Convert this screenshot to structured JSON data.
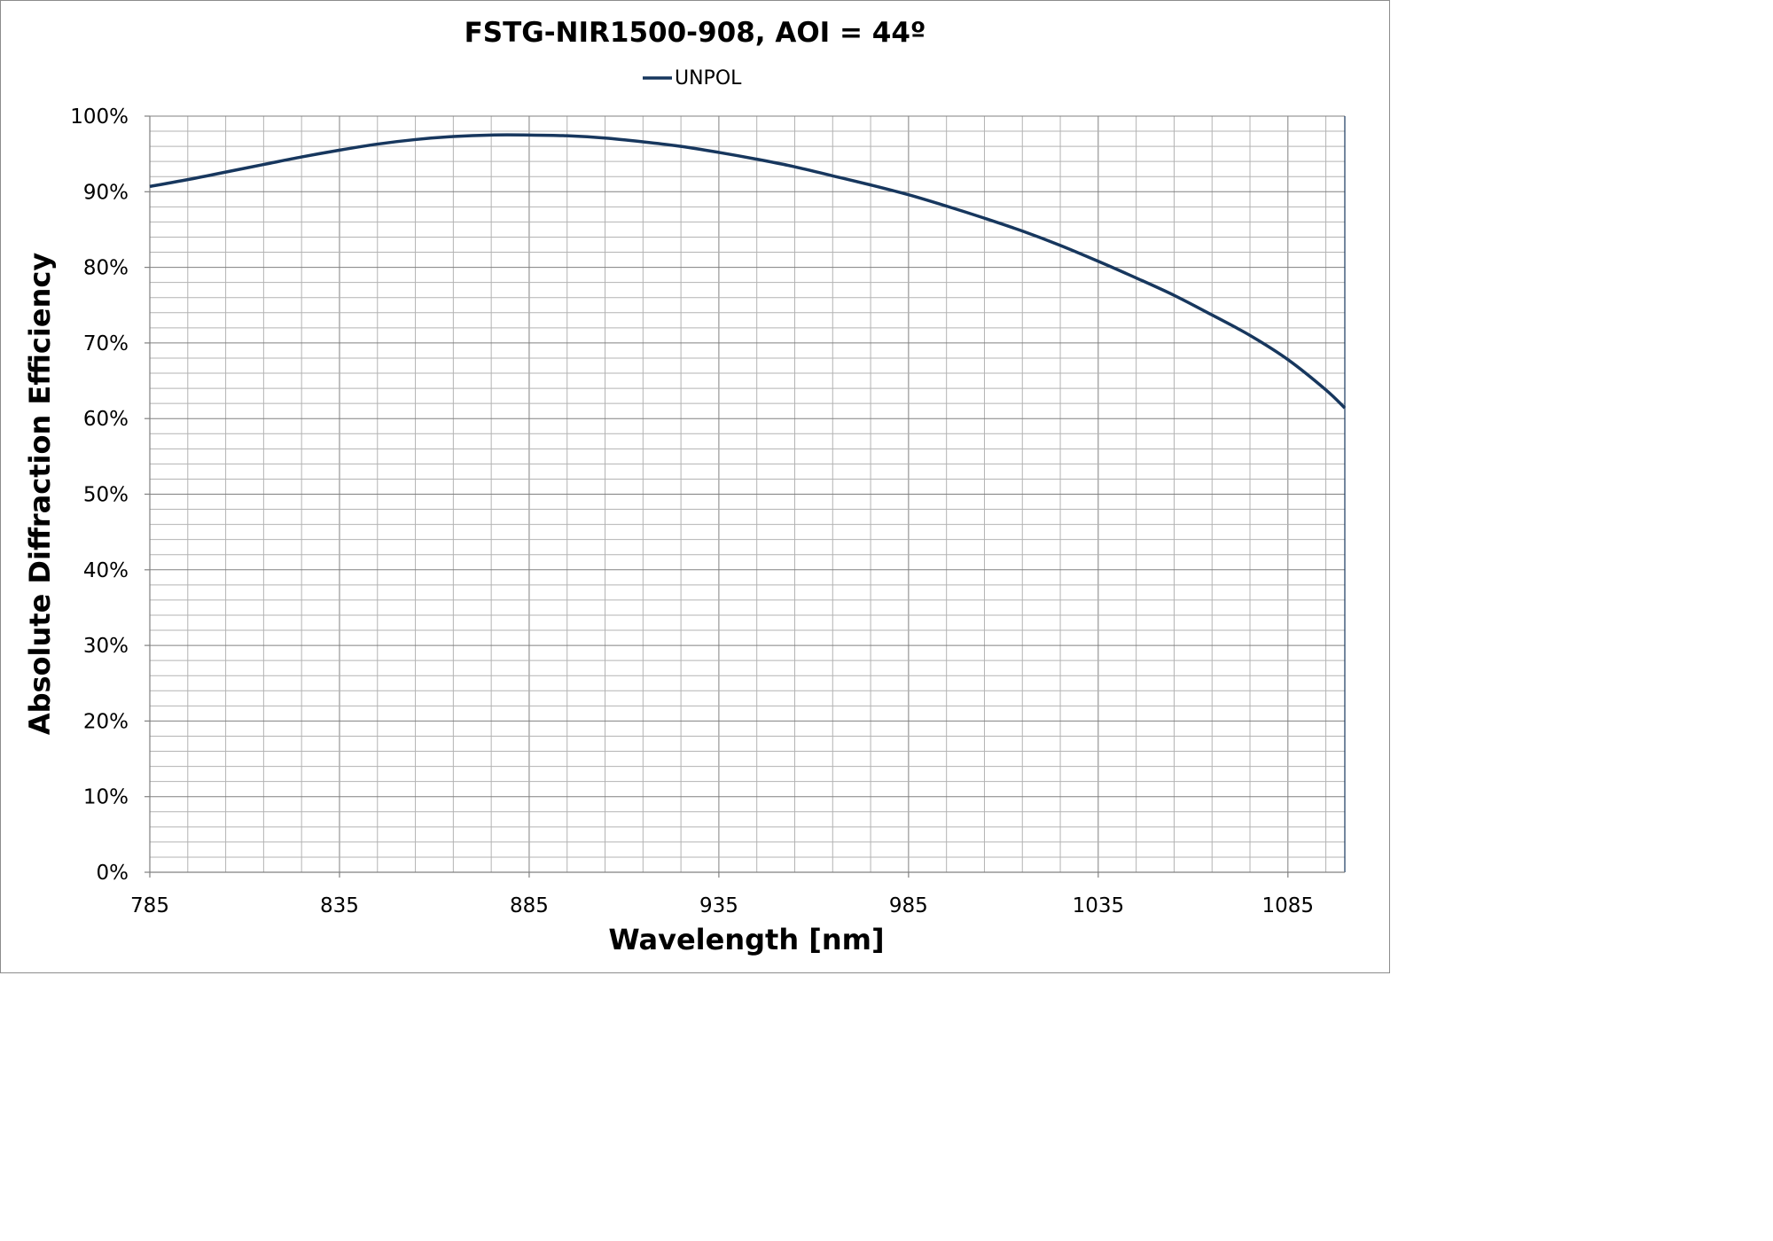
{
  "chart_data": {
    "type": "line",
    "title": "FSTG-NIR1500-908, AOI = 44º",
    "xlabel": "Wavelength [nm]",
    "ylabel": "Absolute Diffraction Efficiency",
    "xlim": [
      785,
      1100
    ],
    "ylim": [
      0,
      1
    ],
    "x_ticks": [
      785,
      835,
      885,
      935,
      985,
      1035,
      1085
    ],
    "x_tick_labels": [
      "785",
      "835",
      "885",
      "935",
      "985",
      "1035",
      "1085"
    ],
    "y_ticks": [
      0,
      0.1,
      0.2,
      0.3,
      0.4,
      0.5,
      0.6,
      0.7,
      0.8,
      0.9,
      1.0
    ],
    "y_tick_labels": [
      "0%",
      "10%",
      "20%",
      "30%",
      "40%",
      "50%",
      "60%",
      "70%",
      "80%",
      "90%",
      "100%"
    ],
    "x_minor_step": 10,
    "y_minor_step": 0.02,
    "grid": true,
    "legend_position": "top-center",
    "series": [
      {
        "name": "UNPOL",
        "color": "#17375e",
        "x": [
          785,
          795,
          805,
          815,
          825,
          835,
          845,
          855,
          865,
          875,
          885,
          895,
          905,
          915,
          925,
          935,
          945,
          955,
          965,
          975,
          985,
          995,
          1005,
          1015,
          1025,
          1035,
          1045,
          1055,
          1065,
          1075,
          1085,
          1095,
          1100
        ],
        "y": [
          0.907,
          0.916,
          0.926,
          0.936,
          0.946,
          0.955,
          0.963,
          0.969,
          0.973,
          0.975,
          0.975,
          0.974,
          0.971,
          0.966,
          0.96,
          0.952,
          0.943,
          0.933,
          0.921,
          0.909,
          0.896,
          0.881,
          0.865,
          0.848,
          0.829,
          0.808,
          0.786,
          0.763,
          0.737,
          0.71,
          0.678,
          0.638,
          0.614
        ]
      }
    ]
  }
}
